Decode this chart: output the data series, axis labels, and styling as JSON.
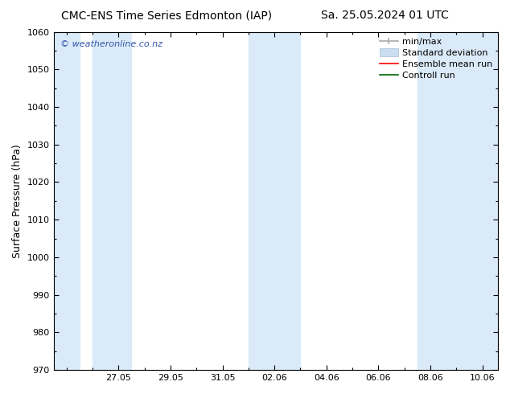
{
  "title_left": "CMC-ENS Time Series Edmonton (IAP)",
  "title_right": "Sa. 25.05.2024 01 UTC",
  "ylabel": "Surface Pressure (hPa)",
  "ylim": [
    970,
    1060
  ],
  "yticks": [
    970,
    980,
    990,
    1000,
    1010,
    1020,
    1030,
    1040,
    1050,
    1060
  ],
  "xtick_labels": [
    "27.05",
    "29.05",
    "31.05",
    "02.06",
    "04.06",
    "06.06",
    "08.06",
    "10.06"
  ],
  "bg_color": "#ffffff",
  "shade_color": "#daeaf8",
  "watermark": "© weatheronline.co.nz",
  "watermark_color": "#3355aa",
  "title_fontsize": 10,
  "axis_label_fontsize": 9,
  "tick_fontsize": 8,
  "legend_fontsize": 8
}
